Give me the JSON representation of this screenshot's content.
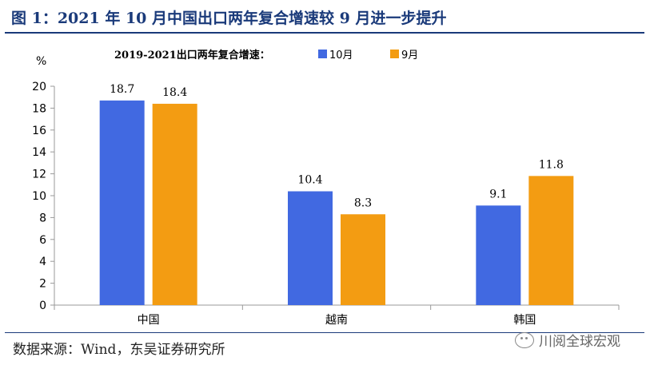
{
  "header": {
    "title": "图 1：2021 年 10 月中国出口两年复合增速较 9 月进一步提升"
  },
  "footer": {
    "source": "数据来源：Wind，东吴证券研究所",
    "watermark": "川阅全球宏观"
  },
  "colors": {
    "series_10": "#4169e1",
    "series_9": "#f39c12",
    "title_blue": "#1a3a7a"
  },
  "chart_data": {
    "type": "bar",
    "title": "2019-2021出口两年复合增速：",
    "ylabel": "%",
    "ylim": [
      0,
      20
    ],
    "yticks": [
      0,
      2,
      4,
      6,
      8,
      10,
      12,
      14,
      16,
      18,
      20
    ],
    "categories": [
      "中国",
      "越南",
      "韩国"
    ],
    "series": [
      {
        "name": "10月",
        "values": [
          18.7,
          10.4,
          9.1
        ]
      },
      {
        "name": "9月",
        "values": [
          18.4,
          8.3,
          11.8
        ]
      }
    ],
    "legend": "top",
    "grid": false
  }
}
